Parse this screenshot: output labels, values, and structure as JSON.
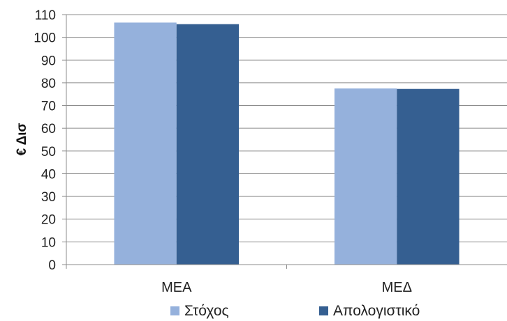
{
  "chart_data": {
    "type": "bar",
    "title": "",
    "xlabel": "",
    "ylabel": "€ Δισ",
    "categories": [
      "ΜΕΑ",
      "ΜΕΔ"
    ],
    "series": [
      {
        "name": "Στόχος",
        "values": [
          106.5,
          77.5
        ],
        "color": "#95b1dc"
      },
      {
        "name": "Απολογιστικό",
        "values": [
          105.8,
          77.3
        ],
        "color": "#355f91"
      }
    ],
    "ylim": [
      0,
      110
    ],
    "yticks": [
      "0",
      "10",
      "20",
      "30",
      "40",
      "50",
      "60",
      "70",
      "80",
      "90",
      "100",
      "110"
    ],
    "grid": true,
    "legend_position": "bottom"
  }
}
